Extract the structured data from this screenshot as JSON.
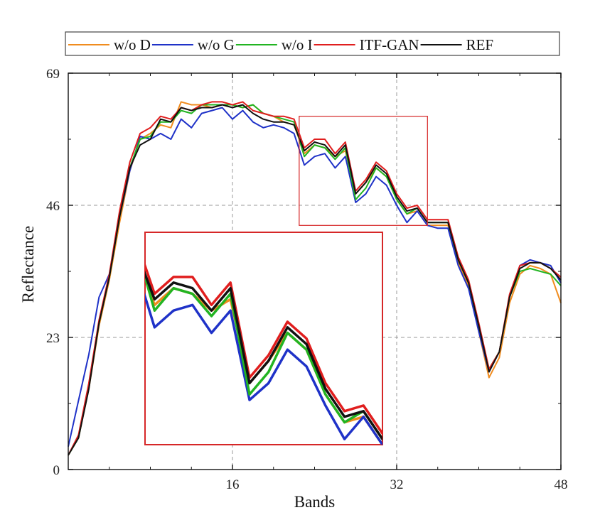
{
  "chart_data": {
    "type": "line",
    "xlabel": "Bands",
    "ylabel": "Reflectance",
    "xlim": [
      0,
      48
    ],
    "ylim": [
      0,
      69
    ],
    "xticks": [
      16,
      32,
      48
    ],
    "yticks": [
      0,
      23,
      46,
      69
    ],
    "grid": "dashed at ticks",
    "legend_position": "top, above plot",
    "inset": {
      "x_range": [
        22.5,
        35.0
      ],
      "y_range": [
        42.5,
        61.5
      ],
      "source_box_color": "#d62728",
      "placement": "lower-left inside plot"
    },
    "x": [
      0,
      1,
      2,
      3,
      4,
      5,
      6,
      7,
      8,
      9,
      10,
      11,
      12,
      13,
      14,
      15,
      16,
      17,
      18,
      19,
      20,
      21,
      22,
      23,
      24,
      25,
      26,
      27,
      28,
      29,
      30,
      31,
      32,
      33,
      34,
      35,
      36,
      37,
      38,
      39,
      40,
      41,
      42,
      43,
      44,
      45,
      46,
      47,
      48
    ],
    "series": [
      {
        "name": "w/o D",
        "color": "#f08c1e",
        "values": [
          2.5,
          5.5,
          14,
          25,
          33,
          43,
          52,
          57.5,
          58.5,
          60,
          59.5,
          64,
          63.5,
          63.5,
          63,
          63.5,
          63.5,
          63,
          63.5,
          62,
          61.5,
          60.5,
          60,
          55,
          56.5,
          56,
          54.5,
          55.5,
          48,
          50,
          52.5,
          51,
          47,
          44.5,
          45,
          42.5,
          42.5,
          42.5,
          36,
          32,
          24,
          16,
          19.5,
          29,
          34,
          35.5,
          35,
          34,
          29
        ]
      },
      {
        "name": "w/o G",
        "color": "#1f32c8",
        "values": [
          4,
          12,
          20,
          30,
          34,
          44,
          52,
          58,
          57.5,
          58.5,
          57.5,
          61,
          59.5,
          62,
          62.5,
          63,
          61,
          62.5,
          60.5,
          59.5,
          60,
          59.5,
          58.5,
          53,
          54.5,
          55,
          52.5,
          54.5,
          46.5,
          48,
          51,
          49.5,
          46,
          43,
          45,
          42.5,
          42,
          42,
          35.5,
          31.5,
          24,
          17,
          20.5,
          30,
          35.5,
          36.5,
          36,
          35.5,
          32.5
        ]
      },
      {
        "name": "w/o I",
        "color": "#22b422",
        "values": [
          2.5,
          5.5,
          14.5,
          25.5,
          33.5,
          44,
          52.5,
          57.5,
          58,
          60.5,
          60.5,
          62.5,
          62,
          63.5,
          63.5,
          63.5,
          63.5,
          63,
          63.5,
          62,
          61.5,
          61,
          60.5,
          54.5,
          56.5,
          56,
          54,
          56,
          47,
          49,
          52.5,
          51,
          47,
          44.5,
          45.5,
          43,
          43,
          43,
          36.5,
          32.5,
          25,
          17.5,
          20.5,
          30,
          34.5,
          35,
          34.5,
          34,
          32
        ]
      },
      {
        "name": "ITF-GAN",
        "color": "#e01e1e",
        "values": [
          2.5,
          6,
          15,
          26,
          34,
          45,
          53.5,
          58.5,
          59.5,
          61.5,
          61,
          63,
          62.5,
          63.5,
          64,
          64,
          63.5,
          64,
          62.5,
          62,
          61.5,
          61.5,
          61,
          56,
          57.5,
          57.5,
          55,
          57,
          48.5,
          50.5,
          53.5,
          52,
          48,
          45.5,
          46,
          43.5,
          43.5,
          43.5,
          37,
          33,
          25.5,
          17.5,
          20.5,
          30.5,
          35.5,
          36,
          36,
          35,
          33.5
        ]
      },
      {
        "name": "REF",
        "color": "#111111",
        "values": [
          2.5,
          5.5,
          14,
          25.5,
          33.5,
          44,
          52.5,
          56.5,
          57.5,
          61,
          60.5,
          63,
          62.5,
          63,
          63,
          63.5,
          63,
          63.5,
          62,
          61,
          60.5,
          60.5,
          60,
          55.5,
          57,
          56.5,
          54.5,
          56.5,
          48,
          50,
          53,
          51.5,
          47.5,
          45,
          45.5,
          43,
          43,
          43,
          36.5,
          32.5,
          25,
          17,
          20.5,
          30,
          35,
          36,
          36,
          35,
          33
        ]
      }
    ]
  }
}
